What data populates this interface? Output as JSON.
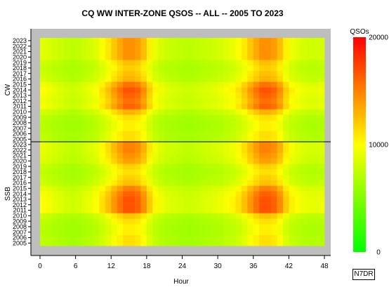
{
  "chart_data": {
    "type": "heatmap",
    "title": "CQ WW INTER-ZONE QSOS -- ALL -- 2005 TO 2023",
    "xlabel": "Hour",
    "x_ticks": [
      0,
      6,
      12,
      18,
      24,
      30,
      36,
      42,
      48
    ],
    "x_range": [
      0,
      48
    ],
    "hours": 48,
    "panels": [
      {
        "name": "SSB",
        "years": [
          2005,
          2006,
          2007,
          2008,
          2009,
          2010,
          2011,
          2012,
          2013,
          2014,
          2015,
          2016,
          2017,
          2018,
          2019,
          2020,
          2021,
          2022,
          2023
        ],
        "year_activity": [
          0.55,
          0.55,
          0.5,
          0.5,
          0.55,
          0.65,
          1.0,
          1.0,
          1.0,
          0.95,
          0.85,
          0.65,
          0.6,
          0.55,
          0.6,
          0.75,
          0.8,
          0.85,
          0.85
        ]
      },
      {
        "name": "CW",
        "years": [
          2005,
          2006,
          2007,
          2008,
          2009,
          2010,
          2011,
          2012,
          2013,
          2014,
          2015,
          2016,
          2017,
          2018,
          2019,
          2020,
          2021,
          2022,
          2023
        ],
        "year_activity": [
          0.55,
          0.55,
          0.5,
          0.5,
          0.55,
          0.7,
          0.95,
          0.9,
          0.95,
          1.0,
          0.9,
          0.7,
          0.65,
          0.6,
          0.65,
          0.8,
          0.8,
          0.8,
          0.8
        ]
      }
    ],
    "hourly_profile": [
      0.45,
      0.42,
      0.38,
      0.35,
      0.32,
      0.3,
      0.32,
      0.36,
      0.4,
      0.45,
      0.55,
      0.65,
      0.78,
      0.9,
      1.0,
      1.0,
      0.95,
      0.82,
      0.62,
      0.48,
      0.4,
      0.36,
      0.34,
      0.32,
      0.3,
      0.3,
      0.32,
      0.34,
      0.36,
      0.38,
      0.4,
      0.44,
      0.48,
      0.55,
      0.65,
      0.78,
      0.9,
      1.0,
      1.0,
      0.95,
      0.82,
      0.62,
      0.5,
      0.44,
      0.4,
      0.38,
      0.38,
      0.4
    ],
    "legend": {
      "title": "QSOs",
      "ticks": [
        0,
        10000,
        20000
      ],
      "min": 0,
      "max": 20000,
      "colors": [
        "#00ff00",
        "#ffff00",
        "#ff0000"
      ]
    },
    "credit": "N7DR"
  }
}
